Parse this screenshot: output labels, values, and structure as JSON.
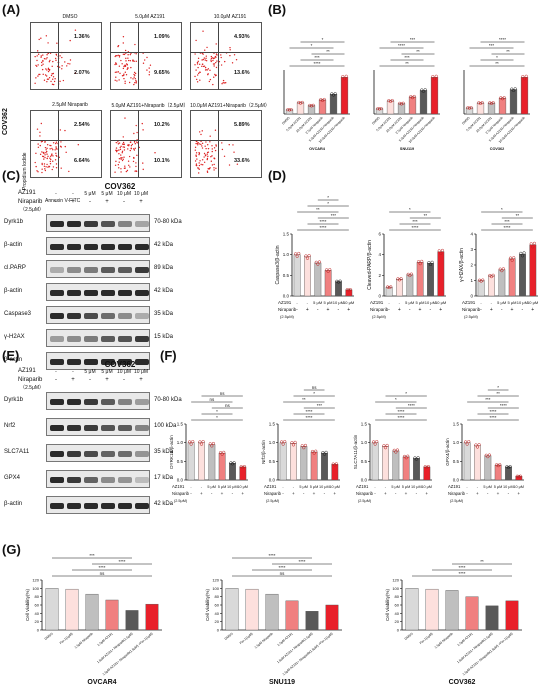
{
  "panel_letters": {
    "A": "(A)",
    "B": "(B)",
    "C": "(C)",
    "D": "(D)",
    "E": "(E)",
    "F": "(F)",
    "G": "(G)"
  },
  "flow": {
    "cell_line": "COV362",
    "y_axis": "Propidium Iodide",
    "x_axis": "Annexin V-FITC",
    "plots": [
      {
        "title": "DMSO",
        "q_upper": "1.36%",
        "q_lower": "2.07%"
      },
      {
        "title": "5.0μM AZ191",
        "q_upper": "1.09%",
        "q_lower": "9.65%"
      },
      {
        "title": "10.0μM AZ191",
        "q_upper": "4.93%",
        "q_lower": "13.6%"
      },
      {
        "title": "2.5μM Niraparib",
        "q_upper": "2.54%",
        "q_lower": "6.64%"
      },
      {
        "title": "5.0μM AZ191+Niraparib（2.5μM）",
        "q_upper": "10.2%",
        "q_lower": "10.1%"
      },
      {
        "title": "10.0μM AZ191+Niraparib（2.5μM）",
        "q_upper": "5.89%",
        "q_lower": "33.6%"
      }
    ]
  },
  "panelB": {
    "groups": [
      "OVCAR4",
      "SNU119",
      "COV362"
    ],
    "sig": [
      "****",
      "***",
      "**",
      "*",
      "*",
      "**",
      "***",
      "**",
      "****",
      "***",
      "**",
      "*",
      "**",
      "***",
      "****",
      "***",
      "**",
      "*",
      "**"
    ],
    "xticks": [
      "DMSO",
      "5.0μM AZ191",
      "10.0μM AZ191",
      "2.5μM Niraparib",
      "5.0μM AZ191+Niraparib",
      "10.0μM AZ191+Niraparib"
    ],
    "chart_data": [
      {
        "type": "bar",
        "title": "OVCAR4",
        "values": [
          3,
          8,
          6,
          10,
          14,
          26
        ]
      },
      {
        "type": "bar",
        "title": "SNU119",
        "values": [
          4,
          10,
          8,
          13,
          18,
          28
        ]
      },
      {
        "type": "bar",
        "title": "COV362",
        "values": [
          5,
          9,
          9,
          13,
          20,
          30
        ]
      }
    ]
  },
  "panelC": {
    "title": "COV362",
    "az191_label": "AZ191",
    "nir_label": "Niraparib",
    "nir_sub": "（2.5μM）",
    "az191_row": [
      "-",
      "-",
      "5 μM",
      "5 μM",
      "10 μM",
      "10 μM"
    ],
    "nir_row": [
      "-",
      "+",
      "-",
      "+",
      "-",
      "+"
    ],
    "rows": [
      {
        "name": "Dyrk1b",
        "kda": "70-80 kDa"
      },
      {
        "name": "β-actin",
        "kda": "42 kDa"
      },
      {
        "name": "cl.PARP",
        "kda": "89 kDa"
      },
      {
        "name": "β-actin",
        "kda": "42 kDa"
      },
      {
        "name": "Caspase3",
        "kda": "35 kDa"
      },
      {
        "name": "γ-H2AX",
        "kda": "15 kDa"
      },
      {
        "name": "β-actin",
        "kda": ""
      }
    ]
  },
  "panelD": {
    "az_label": "AZ191",
    "nir_label": "Niraparib",
    "nir_sub": "(2.5μM)",
    "az_row": [
      "-",
      "-",
      "5 μM",
      "5 μM",
      "10 μM",
      "10 μM"
    ],
    "nir_row": [
      "-",
      "+",
      "-",
      "+",
      "-",
      "+"
    ],
    "chart_data": [
      {
        "type": "bar",
        "ylabel": "Caspase3/β-actin",
        "ylim": [
          0,
          1.5
        ],
        "yticks": [
          "0.0",
          "0.5",
          "1.0",
          "1.5"
        ],
        "values": [
          1.0,
          0.95,
          0.8,
          0.62,
          0.35,
          0.15
        ],
        "sig": [
          "****",
          "****",
          "***",
          "**",
          "*",
          "*"
        ]
      },
      {
        "type": "bar",
        "ylabel": "Cleaved-PARP/β-actin",
        "ylim": [
          0,
          7
        ],
        "yticks": [
          "0",
          "2",
          "4",
          "6"
        ],
        "values": [
          1.0,
          1.9,
          2.4,
          3.8,
          3.7,
          5.0
        ],
        "sig": [
          "****",
          "***",
          "**",
          "*"
        ]
      },
      {
        "type": "bar",
        "ylabel": "γ-H2AX/β-actin",
        "ylim": [
          0,
          4
        ],
        "yticks": [
          "0",
          "1",
          "2",
          "3",
          "4"
        ],
        "values": [
          1.0,
          1.3,
          1.7,
          2.4,
          2.7,
          3.3
        ],
        "sig": [
          "****",
          "***",
          "**",
          "*"
        ]
      }
    ]
  },
  "panelE": {
    "title": "COV362",
    "az191_label": "AZ191",
    "nir_label": "Niraparib",
    "nir_sub": "（2.5μM）",
    "az191_row": [
      "-",
      "-",
      "5 μM",
      "5 μM",
      "10 μM",
      "10 μM"
    ],
    "nir_row": [
      "-",
      "+",
      "-",
      "+",
      "-",
      "+"
    ],
    "rows": [
      {
        "name": "Dyrk1b",
        "kda": "70-80 kDa"
      },
      {
        "name": "Nrf2",
        "kda": "100 kDa"
      },
      {
        "name": "SLC7A11",
        "kda": "35 kDa"
      },
      {
        "name": "GPX4",
        "kda": "17 kDa"
      },
      {
        "name": "β-actin",
        "kda": "42 kDa"
      }
    ]
  },
  "panelF": {
    "az_label": "AZ191",
    "nir_label": "Niraparib",
    "nir_sub": "(2.5μM)",
    "az_row": [
      "-",
      "-",
      "5 μM",
      "5 μM",
      "10 μM",
      "10 μM"
    ],
    "nir_row": [
      "-",
      "+",
      "-",
      "+",
      "-",
      "+"
    ],
    "chart_data": [
      {
        "type": "bar",
        "ylabel": "DYRK1B/β-actin",
        "ylim": [
          0,
          1.5
        ],
        "yticks": [
          "0.0",
          "0.5",
          "1.0",
          "1.5"
        ],
        "values": [
          1.0,
          1.0,
          0.95,
          0.72,
          0.45,
          0.35
        ],
        "sig": [
          "*",
          "*",
          "ns",
          "ns",
          "ns"
        ]
      },
      {
        "type": "bar",
        "ylabel": "Nrf2/β-actin",
        "ylim": [
          0,
          1.5
        ],
        "yticks": [
          "0.0",
          "0.5",
          "1.0",
          "1.5"
        ],
        "values": [
          1.0,
          0.98,
          0.9,
          0.75,
          0.72,
          0.42
        ],
        "sig": [
          "****",
          "****",
          "***",
          "**",
          "*",
          "ns"
        ]
      },
      {
        "type": "bar",
        "ylabel": "SLC7A11/β-actin",
        "ylim": [
          0,
          1.5
        ],
        "yticks": [
          "0.0",
          "0.5",
          "1.0",
          "1.5"
        ],
        "values": [
          1.0,
          0.9,
          0.78,
          0.62,
          0.58,
          0.35
        ],
        "sig": [
          "****",
          "****",
          "****",
          "*",
          "*"
        ]
      },
      {
        "type": "bar",
        "ylabel": "GPX4/β-actin",
        "ylim": [
          0,
          1.5
        ],
        "yticks": [
          "0.0",
          "0.5",
          "1.0",
          "1.5"
        ],
        "values": [
          1.0,
          0.92,
          0.65,
          0.4,
          0.35,
          0.1
        ],
        "sig": [
          "****",
          "****",
          "****",
          "***",
          "**",
          "*"
        ]
      }
    ]
  },
  "panelG": {
    "ylabel": "Cell Viability(%)",
    "xticks": [
      "DMSO",
      "Fer-1(1μM)",
      "1.5μM Niraparib",
      "1.5μM AZ191",
      "1.5μM AZ191+ Niraparib(1.5μM)",
      "1.5μM AZ191+ Niraparib(1.5μM) +Fer-1(1μM)"
    ],
    "chart_data": [
      {
        "type": "bar",
        "title": "OVCAR4",
        "ylim": [
          0,
          120
        ],
        "yticks": [
          "0",
          "20",
          "40",
          "60",
          "80",
          "100",
          "120"
        ],
        "values": [
          100,
          98,
          86,
          72,
          47,
          62
        ],
        "sig": [
          "ns",
          "****",
          "****",
          "***"
        ]
      },
      {
        "type": "bar",
        "title": "SNU119",
        "ylim": [
          0,
          120
        ],
        "yticks": [
          "0",
          "20",
          "40",
          "60",
          "80",
          "100",
          "120"
        ],
        "values": [
          100,
          98,
          86,
          70,
          45,
          60
        ],
        "sig": [
          "ns",
          "****",
          "****",
          "****"
        ]
      },
      {
        "type": "bar",
        "title": "COV362",
        "ylim": [
          0,
          120
        ],
        "yticks": [
          "0",
          "20",
          "40",
          "60",
          "80",
          "100",
          "120"
        ],
        "values": [
          100,
          98,
          95,
          80,
          58,
          70
        ],
        "sig": [
          "****",
          "****",
          "**"
        ]
      }
    ]
  },
  "colors": {
    "c1": "#d9d9d9",
    "c2": "#fde0dd",
    "c3": "#bfbfbf",
    "c4": "#f08080",
    "c5": "#595959",
    "c6": "#e8202a"
  }
}
